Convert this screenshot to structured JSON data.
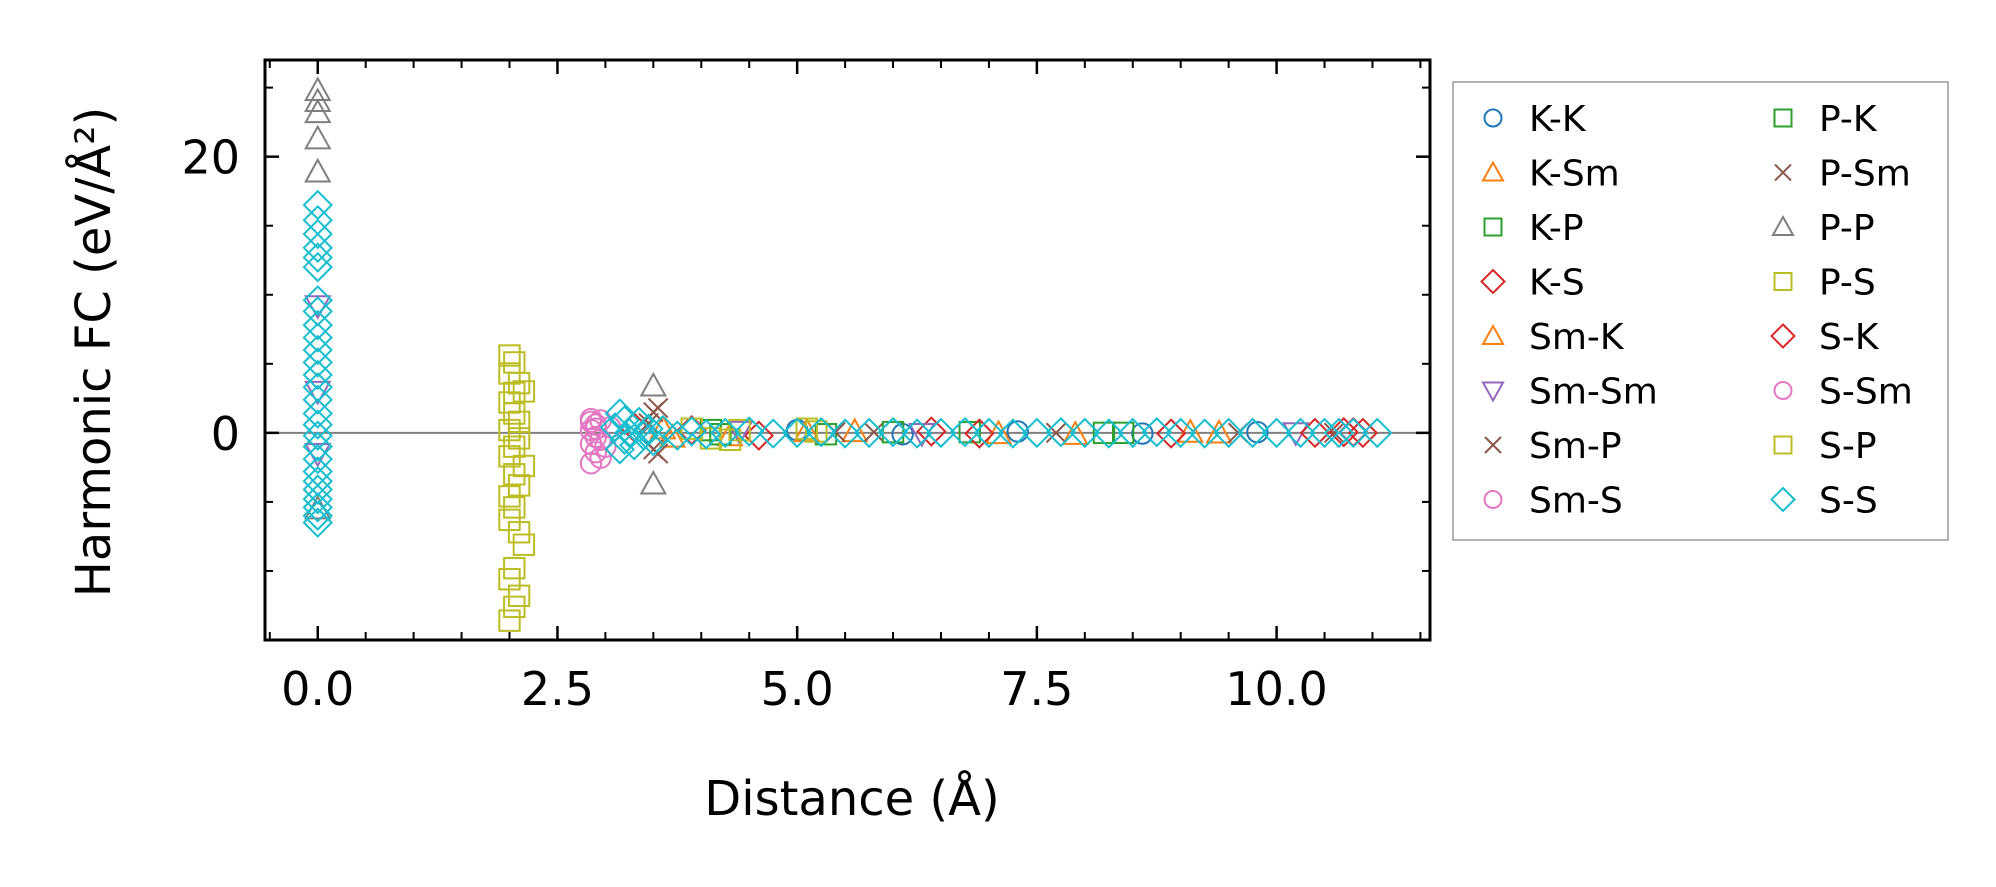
{
  "chart_data": {
    "type": "scatter",
    "title": "",
    "xlabel": "Distance (Å)",
    "ylabel": "Harmonic FC (eV/Å²)",
    "xlim": [
      -0.55,
      11.6
    ],
    "ylim": [
      -15,
      27
    ],
    "xticks": [
      0.0,
      2.5,
      5.0,
      7.5,
      10.0
    ],
    "xtick_labels": [
      "0.0",
      "2.5",
      "5.0",
      "7.5",
      "10.0"
    ],
    "yticks": [
      0,
      20
    ],
    "ytick_labels": [
      "0",
      "20"
    ],
    "zero_line": 0,
    "grid": false,
    "legend_position": "outside-right",
    "series": [
      {
        "name": "K-K",
        "color": "#1f77b4",
        "marker": "circle",
        "points": [
          [
            5.0,
            0.2
          ],
          [
            6.1,
            -0.1
          ],
          [
            7.3,
            0.1
          ],
          [
            8.6,
            -0.05
          ],
          [
            9.8,
            0.05
          ]
        ]
      },
      {
        "name": "K-Sm",
        "color": "#ff7f0e",
        "marker": "triangle-up",
        "points": [
          [
            3.6,
            0.3
          ],
          [
            4.3,
            -0.2
          ],
          [
            5.6,
            0.1
          ],
          [
            7.9,
            -0.1
          ],
          [
            9.1,
            0.05
          ]
        ]
      },
      {
        "name": "K-P",
        "color": "#2ca02c",
        "marker": "square",
        "points": [
          [
            4.1,
            0.2
          ],
          [
            5.3,
            -0.1
          ],
          [
            6.8,
            0.05
          ],
          [
            8.2,
            0.0
          ]
        ]
      },
      {
        "name": "K-S",
        "color": "#d62728",
        "marker": "diamond",
        "points": [
          [
            3.3,
            0.4
          ],
          [
            4.6,
            -0.2
          ],
          [
            6.4,
            0.1
          ],
          [
            8.9,
            -0.05
          ],
          [
            10.7,
            0.05
          ],
          [
            10.9,
            0.0
          ]
        ]
      },
      {
        "name": "Sm-K",
        "color": "#ff7f0e",
        "marker": "triangle-up",
        "points": [
          [
            3.7,
            -0.3
          ],
          [
            5.1,
            0.1
          ],
          [
            7.1,
            -0.05
          ],
          [
            9.4,
            0.0
          ]
        ]
      },
      {
        "name": "Sm-Sm",
        "color": "#9467bd",
        "marker": "triangle-down",
        "points": [
          [
            0.0,
            9.2
          ],
          [
            0.0,
            3.0
          ],
          [
            0.0,
            -1.5
          ],
          [
            4.4,
            0.1
          ],
          [
            6.3,
            -0.05
          ],
          [
            10.2,
            0.0
          ]
        ]
      },
      {
        "name": "Sm-P",
        "color": "#8c564b",
        "marker": "x",
        "points": [
          [
            3.5,
            1.5
          ],
          [
            3.55,
            -1.5
          ],
          [
            3.45,
            0.7
          ],
          [
            5.8,
            0.05
          ],
          [
            7.7,
            0.0
          ],
          [
            10.6,
            0.0
          ]
        ]
      },
      {
        "name": "Sm-S",
        "color": "#e377c2",
        "marker": "circle",
        "points": [
          [
            2.85,
            1.0
          ],
          [
            2.9,
            0.6
          ],
          [
            2.85,
            0.2
          ],
          [
            2.9,
            -0.3
          ],
          [
            2.85,
            -0.8
          ],
          [
            2.9,
            -1.4
          ],
          [
            2.85,
            -2.2
          ],
          [
            2.95,
            0.9
          ],
          [
            3.0,
            -1.0
          ],
          [
            3.05,
            0.4
          ],
          [
            2.95,
            -0.5
          ]
        ]
      },
      {
        "name": "P-K",
        "color": "#2ca02c",
        "marker": "square",
        "points": [
          [
            4.2,
            -0.1
          ],
          [
            6.0,
            0.05
          ],
          [
            8.4,
            0.0
          ]
        ]
      },
      {
        "name": "P-Sm",
        "color": "#8c564b",
        "marker": "x",
        "points": [
          [
            3.5,
            -1.2
          ],
          [
            3.55,
            1.8
          ],
          [
            5.4,
            0.05
          ],
          [
            9.6,
            0.0
          ]
        ]
      },
      {
        "name": "P-P",
        "color": "#7f7f7f",
        "marker": "triangle-up",
        "points": [
          [
            0.0,
            24.8
          ],
          [
            0.0,
            24.0
          ],
          [
            0.0,
            23.2
          ],
          [
            0.0,
            21.3
          ],
          [
            0.0,
            18.9
          ],
          [
            3.5,
            3.4
          ],
          [
            3.5,
            -3.7
          ],
          [
            0.0,
            -5.5
          ]
        ]
      },
      {
        "name": "P-S",
        "color": "#bcbd22",
        "marker": "square",
        "points": [
          [
            2.0,
            5.6
          ],
          [
            2.05,
            5.1
          ],
          [
            2.0,
            4.3
          ],
          [
            2.1,
            3.6
          ],
          [
            2.05,
            2.9
          ],
          [
            2.0,
            2.2
          ],
          [
            2.15,
            3.0
          ],
          [
            2.05,
            1.4
          ],
          [
            2.1,
            0.8
          ],
          [
            2.0,
            0.2
          ],
          [
            2.1,
            -0.4
          ],
          [
            2.05,
            -1.0
          ],
          [
            2.0,
            -1.7
          ],
          [
            2.15,
            -2.4
          ],
          [
            2.05,
            -3.0
          ],
          [
            2.1,
            -3.8
          ],
          [
            2.0,
            -4.6
          ],
          [
            2.05,
            -5.4
          ],
          [
            2.0,
            -6.3
          ],
          [
            2.1,
            -7.2
          ],
          [
            2.15,
            -8.1
          ],
          [
            2.05,
            -9.8
          ],
          [
            2.0,
            -10.6
          ],
          [
            2.1,
            -11.8
          ],
          [
            2.05,
            -12.6
          ],
          [
            2.0,
            -13.6
          ]
        ]
      },
      {
        "name": "S-K",
        "color": "#d62728",
        "marker": "diamond",
        "points": [
          [
            3.9,
            0.2
          ],
          [
            6.9,
            -0.05
          ],
          [
            10.4,
            0.0
          ],
          [
            10.8,
            0.05
          ]
        ]
      },
      {
        "name": "S-Sm",
        "color": "#e377c2",
        "marker": "circle",
        "points": [
          [
            2.9,
            0.3
          ],
          [
            2.95,
            -1.8
          ],
          [
            2.85,
            0.8
          ]
        ]
      },
      {
        "name": "S-P",
        "color": "#bcbd22",
        "marker": "square",
        "points": [
          [
            3.9,
            0.3
          ],
          [
            4.1,
            -0.4
          ],
          [
            4.4,
            0.2
          ],
          [
            4.3,
            -0.5
          ],
          [
            5.1,
            0.3
          ],
          [
            5.2,
            0.1
          ]
        ]
      },
      {
        "name": "S-S",
        "color": "#17becf",
        "marker": "diamond",
        "points": [
          [
            0.0,
            16.5
          ],
          [
            0.0,
            15.4
          ],
          [
            0.0,
            14.4
          ],
          [
            0.0,
            13.4
          ],
          [
            0.0,
            12.7
          ],
          [
            0.0,
            12.0
          ],
          [
            0.0,
            9.6
          ],
          [
            0.0,
            8.8
          ],
          [
            0.0,
            7.8
          ],
          [
            0.0,
            6.9
          ],
          [
            0.0,
            6.0
          ],
          [
            0.0,
            5.1
          ],
          [
            0.0,
            4.2
          ],
          [
            0.0,
            3.3
          ],
          [
            0.0,
            2.4
          ],
          [
            0.0,
            1.4
          ],
          [
            0.0,
            0.6
          ],
          [
            0.0,
            -0.2
          ],
          [
            0.0,
            -1.0
          ],
          [
            0.0,
            -1.9
          ],
          [
            0.0,
            -2.8
          ],
          [
            0.0,
            -3.5
          ],
          [
            0.0,
            -4.1
          ],
          [
            0.0,
            -4.8
          ],
          [
            0.0,
            -5.4
          ],
          [
            0.0,
            -6.0
          ],
          [
            0.0,
            -6.5
          ],
          [
            3.15,
            1.4
          ],
          [
            3.2,
            0.9
          ],
          [
            3.1,
            0.4
          ],
          [
            3.25,
            0.0
          ],
          [
            3.2,
            -0.5
          ],
          [
            3.3,
            -0.9
          ],
          [
            3.15,
            -1.2
          ],
          [
            3.35,
            0.8
          ],
          [
            3.4,
            -0.2
          ],
          [
            3.45,
            0.3
          ],
          [
            3.5,
            -0.6
          ],
          [
            3.6,
            0.2
          ],
          [
            3.75,
            -0.2
          ],
          [
            3.9,
            0.1
          ],
          [
            4.05,
            -0.1
          ],
          [
            4.25,
            0.0
          ],
          [
            4.5,
            0.1
          ],
          [
            4.75,
            -0.05
          ],
          [
            5.0,
            0.0
          ],
          [
            5.25,
            0.05
          ],
          [
            5.5,
            -0.05
          ],
          [
            5.75,
            0.0
          ],
          [
            6.0,
            0.05
          ],
          [
            6.25,
            -0.05
          ],
          [
            6.5,
            0.0
          ],
          [
            6.75,
            0.05
          ],
          [
            7.0,
            0.0
          ],
          [
            7.25,
            -0.05
          ],
          [
            7.5,
            0.0
          ],
          [
            7.75,
            0.05
          ],
          [
            8.0,
            0.0
          ],
          [
            8.25,
            -0.05
          ],
          [
            8.5,
            0.0
          ],
          [
            8.75,
            0.05
          ],
          [
            9.0,
            0.0
          ],
          [
            9.25,
            -0.05
          ],
          [
            9.5,
            0.0
          ],
          [
            9.75,
            0.0
          ],
          [
            10.0,
            0.0
          ],
          [
            10.25,
            0.0
          ],
          [
            10.5,
            0.0
          ],
          [
            10.65,
            0.0
          ],
          [
            10.8,
            0.0
          ],
          [
            11.05,
            0.0
          ]
        ]
      }
    ]
  }
}
